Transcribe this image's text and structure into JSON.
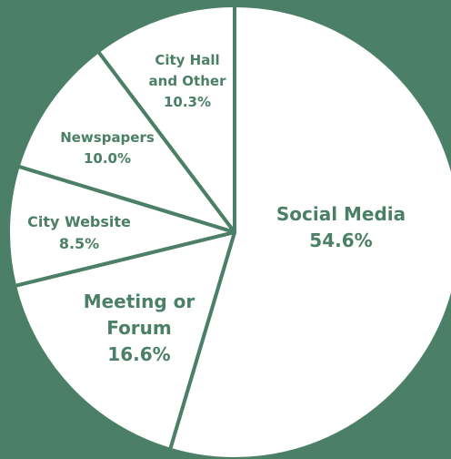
{
  "chart_data": {
    "type": "pie",
    "categories": [
      "Social Media",
      "Meeting or Forum",
      "City Website",
      "Newspapers",
      "City Hall and Other"
    ],
    "values": [
      54.6,
      16.6,
      8.5,
      10.0,
      10.3
    ],
    "value_labels": [
      "54.6%",
      "16.6%",
      "8.5%",
      "10.0%",
      "10.3%"
    ],
    "color": "#ffffff",
    "edge_color": "#4b7f67",
    "background": "#4b7f67"
  }
}
